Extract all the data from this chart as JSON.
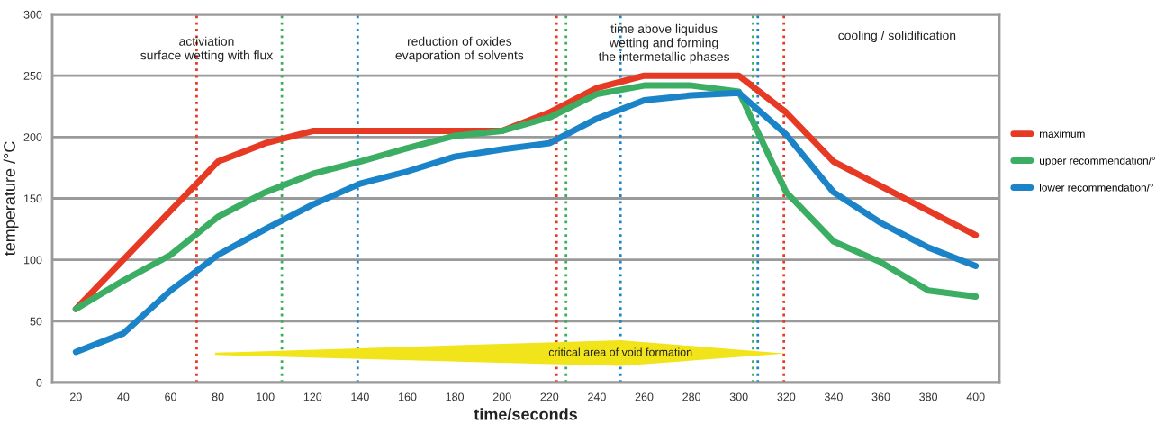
{
  "chart_data": {
    "type": "line",
    "xlabel": "time/seconds",
    "ylabel": "temperature /°C",
    "x": [
      20,
      40,
      60,
      80,
      100,
      120,
      140,
      160,
      180,
      200,
      220,
      240,
      260,
      280,
      300,
      320,
      340,
      360,
      380,
      400
    ],
    "xlim": [
      10,
      410
    ],
    "xticks": [
      20,
      40,
      60,
      80,
      100,
      120,
      140,
      160,
      180,
      200,
      220,
      240,
      260,
      280,
      300,
      320,
      340,
      360,
      380,
      400
    ],
    "ylim": [
      0,
      300
    ],
    "yticks": [
      0,
      50,
      100,
      150,
      200,
      250,
      300
    ],
    "grid": "y",
    "legend": "right",
    "line_style": "solid",
    "marker": "none",
    "series": [
      {
        "name": "maximum",
        "color": "#e63a24",
        "values": [
          60,
          100,
          140,
          180,
          195,
          205,
          205,
          205,
          205,
          205,
          220,
          240,
          250,
          250,
          250,
          220,
          180,
          160,
          140,
          120
        ]
      },
      {
        "name": "upper recommendation/°",
        "color": "#3cae63",
        "values": [
          60,
          83,
          104,
          135,
          155,
          170,
          180,
          191,
          201,
          205,
          216,
          235,
          242,
          242,
          237,
          155,
          115,
          98,
          75,
          70
        ]
      },
      {
        "name": "lower recommendation/°",
        "color": "#1b84c8",
        "values": [
          25,
          40,
          75,
          104,
          125,
          145,
          162,
          172,
          184,
          190,
          195,
          215,
          230,
          234,
          236,
          202,
          155,
          130,
          110,
          95
        ]
      }
    ],
    "ref_lines": [
      {
        "axis": "x",
        "value": 71,
        "color": "#e63a24",
        "line_style": "dotted"
      },
      {
        "axis": "x",
        "value": 107,
        "color": "#3cae63",
        "line_style": "dotted"
      },
      {
        "axis": "x",
        "value": 139,
        "color": "#1b84c8",
        "line_style": "dotted"
      },
      {
        "axis": "x",
        "value": 223,
        "color": "#e63a24",
        "line_style": "dotted"
      },
      {
        "axis": "x",
        "value": 227,
        "color": "#3cae63",
        "line_style": "dotted"
      },
      {
        "axis": "x",
        "value": 250,
        "color": "#1b84c8",
        "line_style": "dotted"
      },
      {
        "axis": "x",
        "value": 306,
        "color": "#3cae63",
        "line_style": "dotted"
      },
      {
        "axis": "x",
        "value": 308,
        "color": "#1b84c8",
        "line_style": "dotted"
      },
      {
        "axis": "x",
        "value": 319,
        "color": "#e63a24",
        "line_style": "dotted"
      }
    ],
    "annotations": [
      "activiation\nsurface wetting with flux",
      "reduction of oxides\nevaporation of solvents",
      "time above liquidus\nwetting and forming\nthe intermetallic phases",
      "cooling / solidification",
      "critical area of void formation"
    ]
  }
}
